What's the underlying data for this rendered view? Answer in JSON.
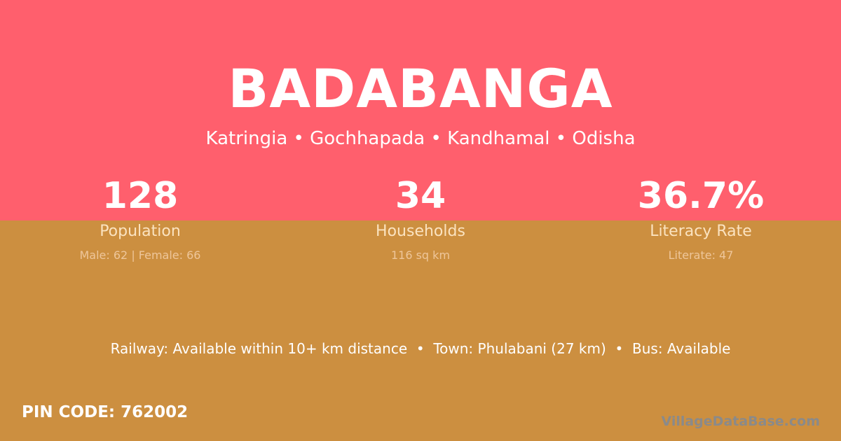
{
  "village": "BADABANGA",
  "location": "Katringia • Gochhapada • Kandhamal • Odisha",
  "stats": [
    {
      "value": "128",
      "label": "Population",
      "detail": "Male: 62 | Female: 66"
    },
    {
      "value": "34",
      "label": "Households",
      "detail": "116 sq km"
    },
    {
      "value": "36.7%",
      "label": "Literacy Rate",
      "detail": "Literate: 47"
    }
  ],
  "connectivity": "Railway: Available within 10+ km distance  •  Town: Phulabani (27 km)  •  Bus: Available",
  "pin": "PIN CODE: 762002",
  "brand": "VillageDataBase.com",
  "colors": {
    "top": "#ff5f6d",
    "bottom": "#cc8f40"
  }
}
